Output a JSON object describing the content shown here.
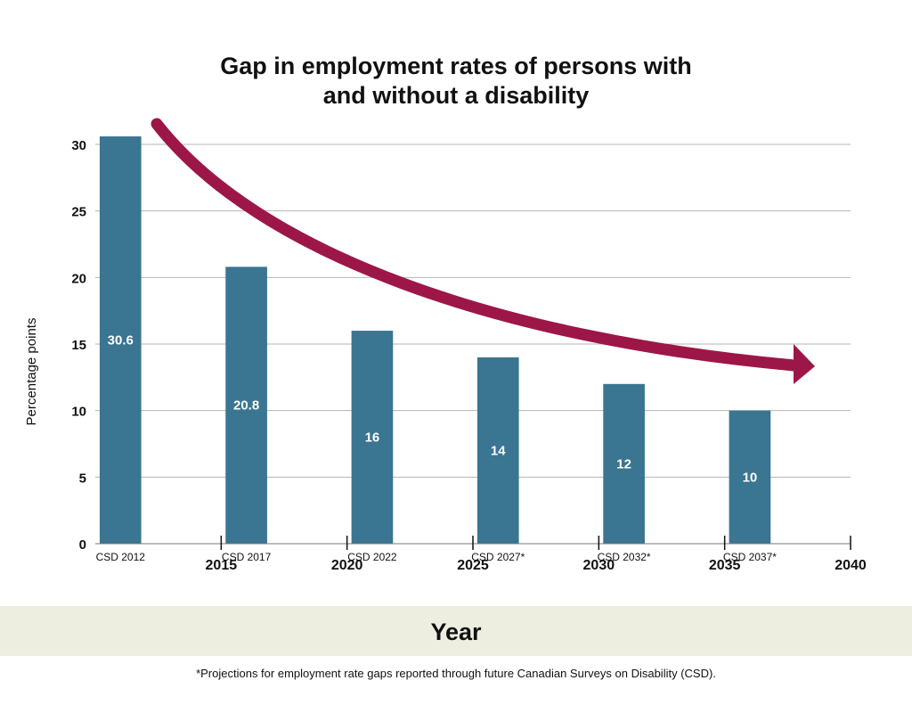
{
  "chart_data": {
    "type": "bar",
    "title_lines": [
      "Gap in employment rates of persons with",
      "and without a disability"
    ],
    "ylabel": "Percentage points",
    "xlabel": "Year",
    "ylim": [
      0,
      30
    ],
    "yticks": [
      0,
      5,
      10,
      15,
      20,
      25,
      30
    ],
    "xlim": [
      2010,
      2040
    ],
    "year_ticks": [
      2015,
      2020,
      2025,
      2030,
      2035,
      2040
    ],
    "categories": [
      "CSD 2012",
      "CSD 2017",
      "CSD 2022",
      "CSD 2027*",
      "CSD 2032*",
      "CSD 2037*"
    ],
    "bar_years": [
      2011,
      2016,
      2021,
      2026,
      2031,
      2036
    ],
    "values": [
      30.6,
      20.8,
      16,
      14,
      12,
      10
    ],
    "value_labels": [
      "30.6",
      "20.8",
      "16",
      "14",
      "12",
      "10"
    ],
    "grid": true,
    "trend_arrow": true,
    "colors": {
      "bar": "#3a7591",
      "arrow": "#9c1747",
      "grid": "#b5b5b5",
      "band": "#eeeee0"
    },
    "footnote": "*Projections for employment rate gaps reported through future Canadian Surveys on Disability (CSD)."
  }
}
